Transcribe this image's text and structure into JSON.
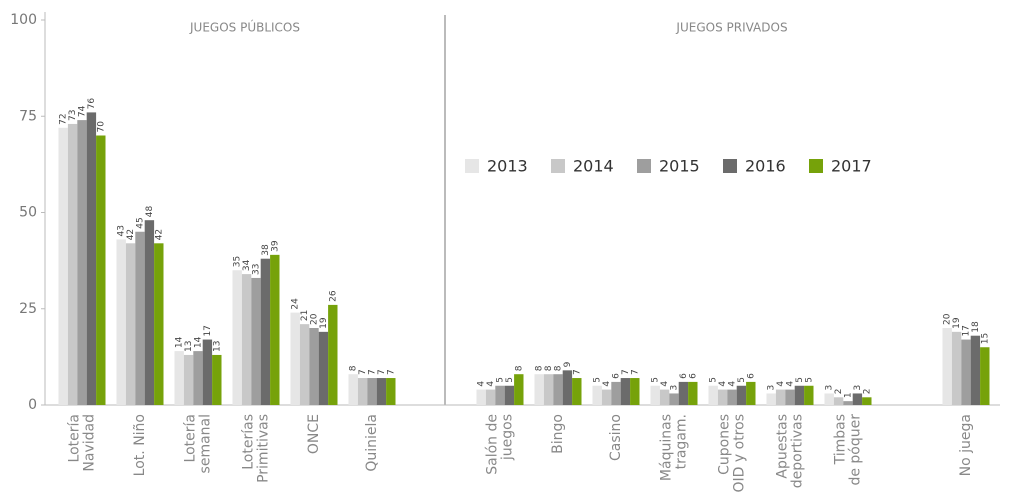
{
  "chart_data": {
    "type": "bar",
    "annotations": [
      "JUEGOS PÚBLICOS",
      "JUEGOS PRIVADOS"
    ],
    "categories": [
      [
        "Lotería",
        "Navidad"
      ],
      [
        "Lot. Niño"
      ],
      [
        "Lotería",
        "semanal"
      ],
      [
        "Loterías",
        "Primitivas"
      ],
      [
        "ONCE"
      ],
      [
        "Quiniela"
      ],
      [
        "Salón de",
        "juegos"
      ],
      [
        "Bingo"
      ],
      [
        "Casino"
      ],
      [
        "Máquinas",
        "tragam."
      ],
      [
        "Cupones",
        "OID y otros"
      ],
      [
        "Apuestas",
        "deportivas"
      ],
      [
        "Timbas",
        "de póquer"
      ],
      [
        "No juega"
      ]
    ],
    "series": [
      {
        "name": "2013",
        "color": "#e6e6e6",
        "values": [
          72,
          43,
          14,
          35,
          24,
          8,
          4,
          8,
          5,
          5,
          5,
          3,
          3,
          20
        ]
      },
      {
        "name": "2014",
        "color": "#c8c8c8",
        "values": [
          73,
          42,
          13,
          34,
          21,
          7,
          4,
          8,
          4,
          4,
          4,
          4,
          2,
          19
        ]
      },
      {
        "name": "2015",
        "color": "#9e9e9e",
        "values": [
          74,
          45,
          14,
          33,
          20,
          7,
          5,
          8,
          6,
          3,
          4,
          4,
          1,
          17
        ]
      },
      {
        "name": "2016",
        "color": "#6b6b6b",
        "values": [
          76,
          48,
          17,
          38,
          19,
          7,
          5,
          9,
          7,
          6,
          5,
          5,
          3,
          18
        ]
      },
      {
        "name": "2017",
        "color": "#76a20a",
        "values": [
          70,
          42,
          13,
          39,
          26,
          7,
          8,
          7,
          7,
          6,
          6,
          5,
          2,
          15
        ]
      }
    ],
    "ylim": [
      0,
      100
    ],
    "yticks": [
      0,
      25,
      50,
      75,
      100
    ]
  }
}
